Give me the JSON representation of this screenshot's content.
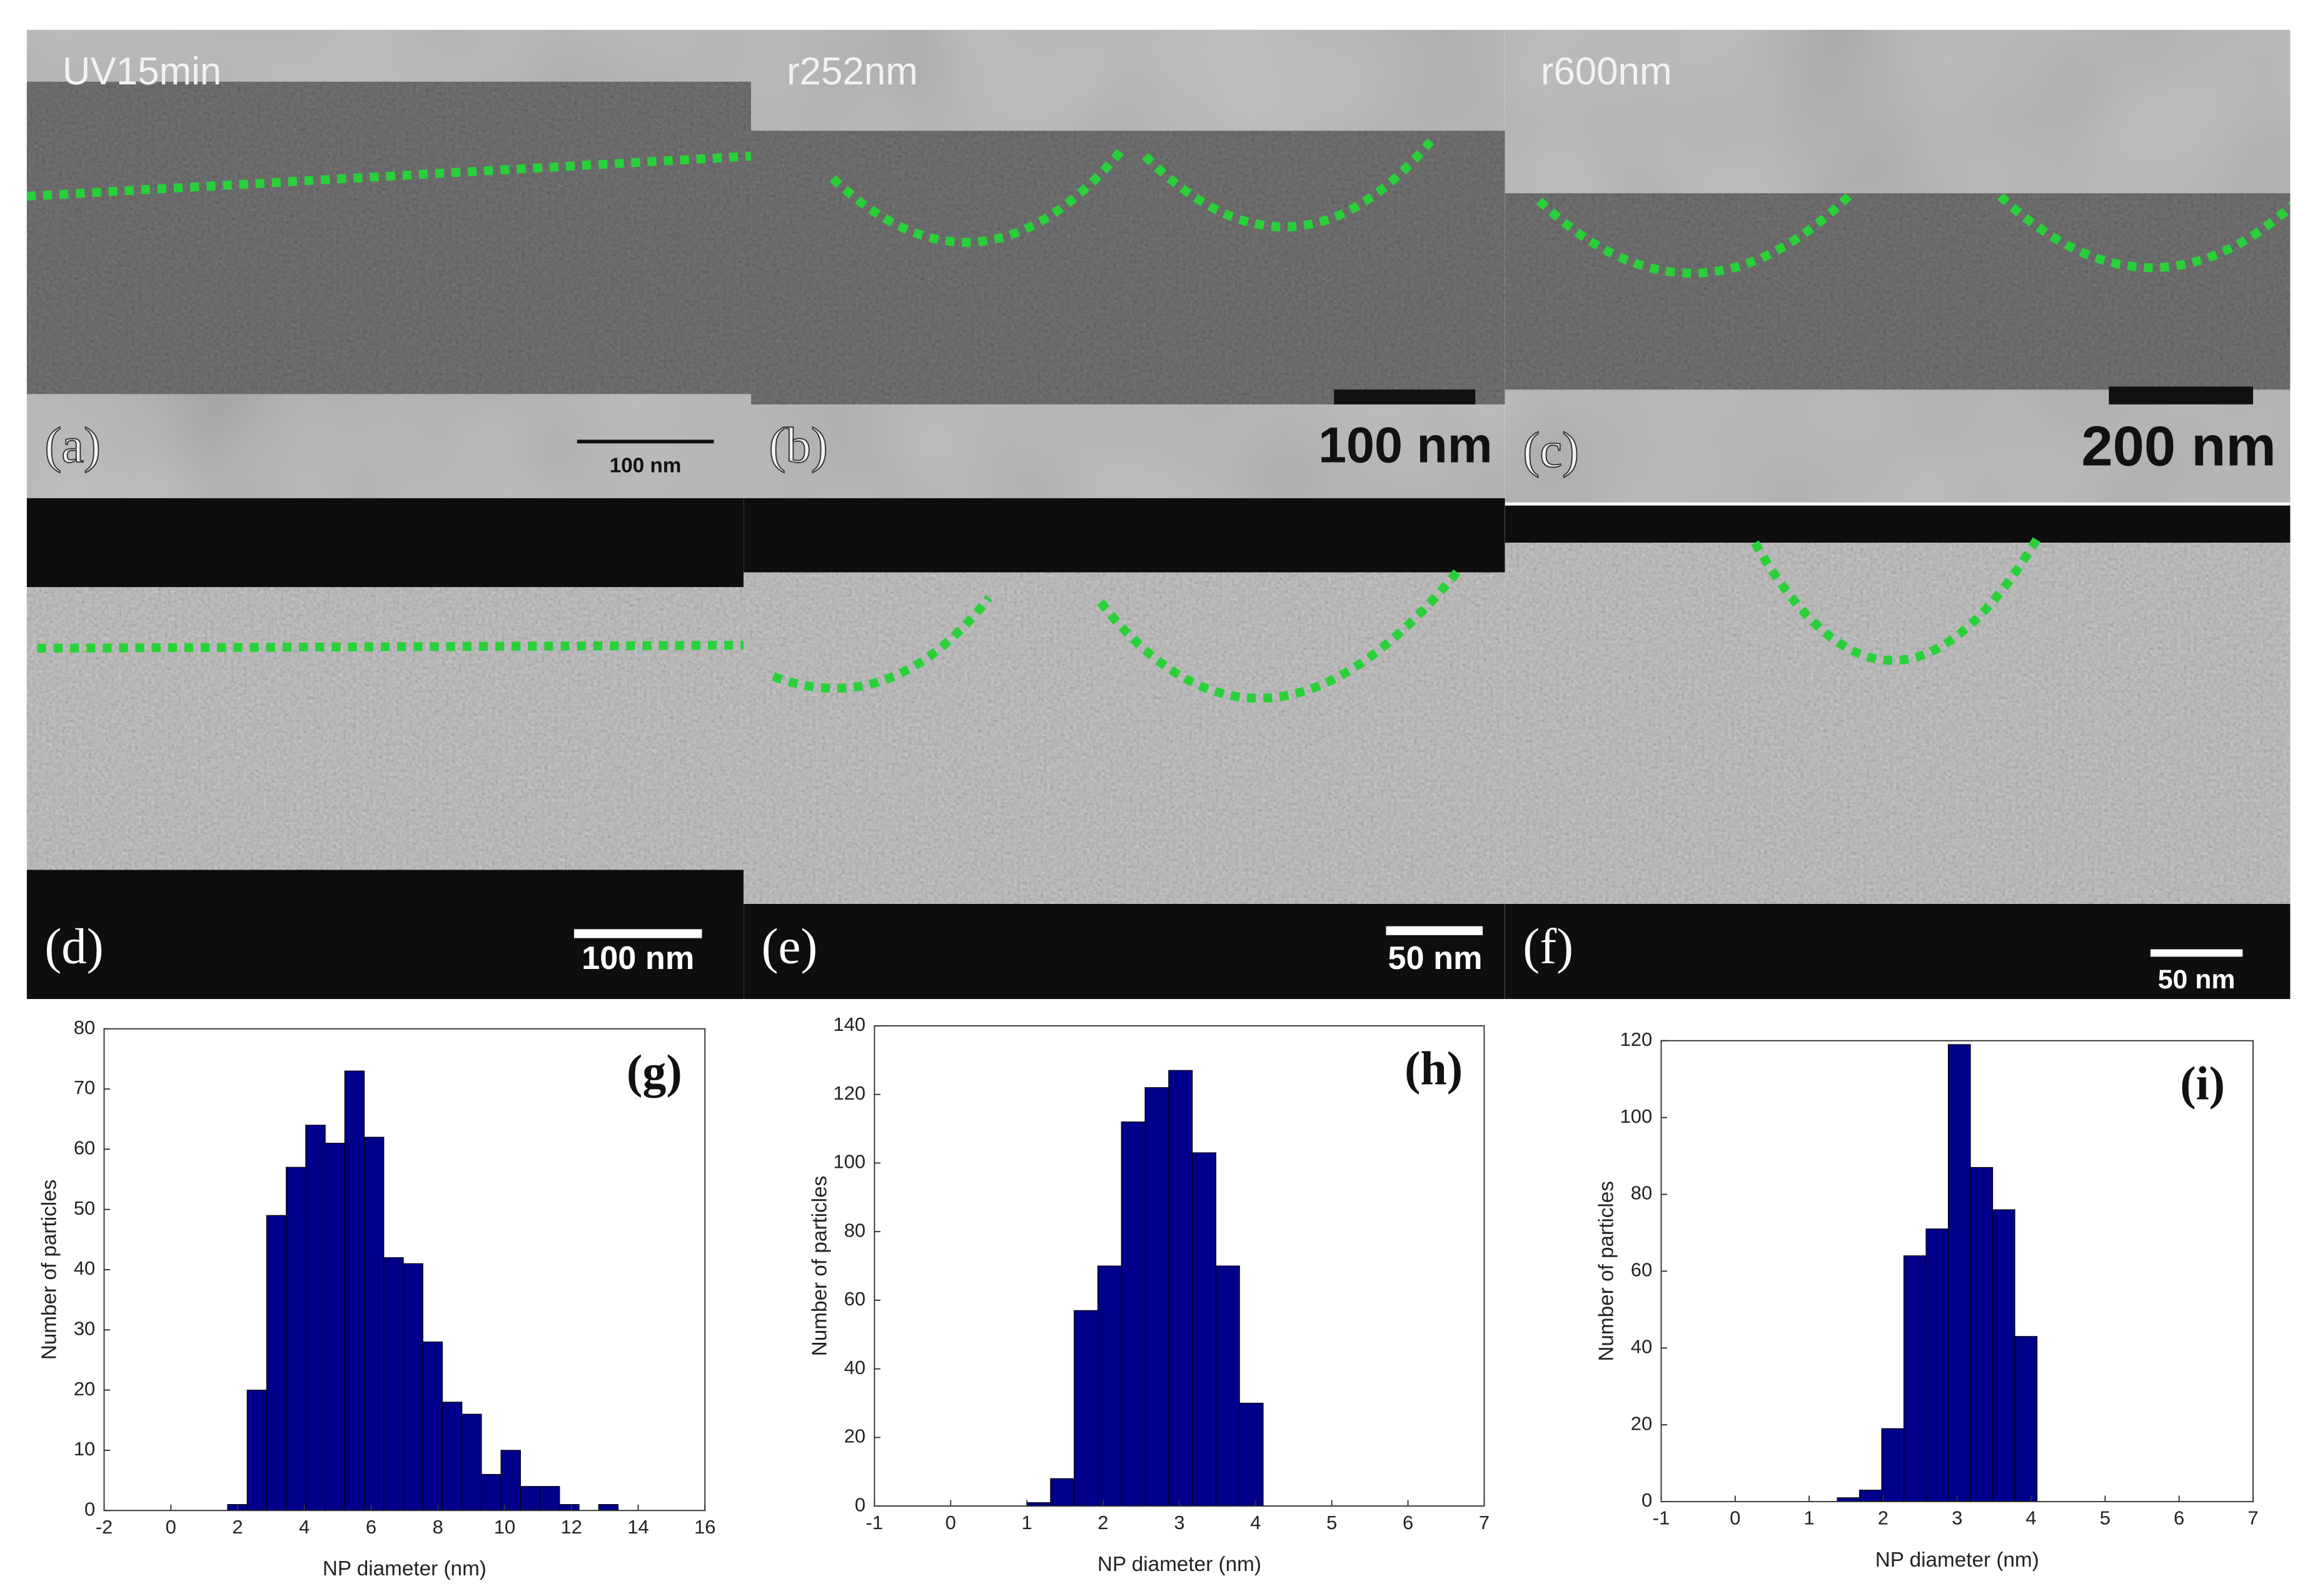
{
  "images": [
    {
      "title": "UV15min",
      "label": "(a)",
      "scale_bar": "100 nm"
    },
    {
      "title": "r252nm",
      "label": "(b)",
      "scale_bar": "100 nm"
    },
    {
      "title": "r600nm",
      "label": "(c)",
      "scale_bar": "200 nm"
    },
    {
      "label": "(d)",
      "scale_bar": "100 nm"
    },
    {
      "label": "(e)",
      "scale_bar": "50 nm"
    },
    {
      "label": "(f)",
      "scale_bar": "50 nm"
    }
  ],
  "chart_data": [
    {
      "type": "histogram",
      "annotation": "(g)",
      "x_label": "NP diameter (nm)",
      "y_label": "Number of particles",
      "color": "#00008b",
      "bins": [
        1.7,
        2.285,
        2.87,
        3.455,
        4.04,
        4.625,
        5.21,
        5.795,
        6.38,
        6.965,
        7.55,
        8.135,
        8.72,
        9.305,
        9.89,
        10.475,
        11.06,
        11.645,
        12.23,
        12.815,
        13.4
      ],
      "values": [
        1,
        20,
        49,
        57,
        64,
        61,
        73,
        62,
        42,
        41,
        28,
        18,
        16,
        6,
        10,
        4,
        4,
        1,
        0,
        1
      ],
      "xlim": [
        -2,
        16
      ],
      "xticks": [
        -2,
        0,
        2,
        4,
        6,
        8,
        10,
        12,
        14,
        16
      ],
      "ylim": [
        0,
        80
      ],
      "yticks": [
        0,
        10,
        20,
        30,
        40,
        50,
        60,
        70,
        80
      ]
    },
    {
      "type": "histogram",
      "annotation": "(h)",
      "x_label": "NP diameter (nm)",
      "y_label": "Number of particles",
      "color": "#00008b",
      "bins": [
        1.0,
        1.31,
        1.62,
        1.93,
        2.24,
        2.55,
        2.86,
        3.17,
        3.48,
        3.79,
        4.1
      ],
      "values": [
        1,
        8,
        57,
        70,
        112,
        122,
        127,
        103,
        70,
        30
      ],
      "xlim": [
        -1,
        7
      ],
      "xticks": [
        -1,
        0,
        1,
        2,
        3,
        4,
        5,
        6,
        7
      ],
      "ylim": [
        0,
        140
      ],
      "yticks": [
        0,
        20,
        40,
        60,
        80,
        100,
        120,
        140
      ]
    },
    {
      "type": "histogram",
      "annotation": "(i)",
      "x_label": "NP diameter (nm)",
      "y_label": "Number of particles",
      "color": "#00008b",
      "bins": [
        1.38,
        1.68,
        1.98,
        2.28,
        2.58,
        2.88,
        3.18,
        3.48,
        3.78,
        4.08
      ],
      "values": [
        1,
        3,
        19,
        64,
        71,
        119,
        87,
        76,
        43
      ],
      "xlim": [
        -1,
        7
      ],
      "xticks": [
        -1,
        0,
        1,
        2,
        3,
        4,
        5,
        6,
        7
      ],
      "ylim": [
        0,
        120
      ],
      "yticks": [
        0,
        20,
        40,
        60,
        80,
        100,
        120
      ]
    }
  ]
}
